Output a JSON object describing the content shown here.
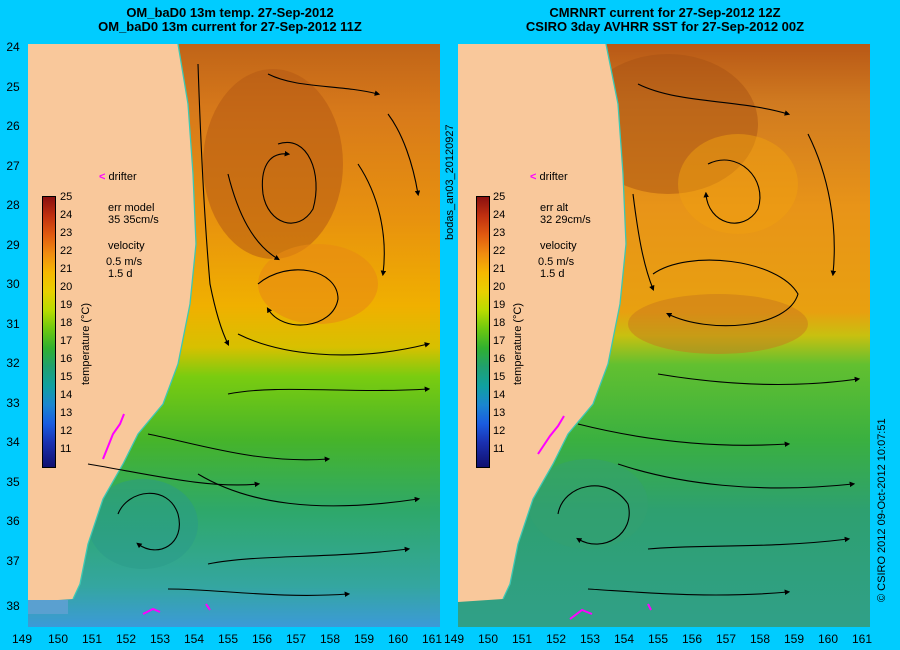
{
  "left_panel": {
    "title_line1": "OM_baD0 13m temp. 27-Sep-2012",
    "title_line2": "OM_baD0 13m current for 27-Sep-2012 11Z",
    "err_label": "err model",
    "err_value": "35 35cm/s",
    "velocity_label": "velocity",
    "velocity_scale": "0.5 m/s",
    "velocity_time": "1.5 d"
  },
  "right_panel": {
    "title_line1": "CMRNRT current for 27-Sep-2012 12Z",
    "title_line2": "CSIRO 3day AVHRR SST for 27-Sep-2012 00Z",
    "err_label": "err alt",
    "err_value": "32 29cm/s",
    "velocity_label": "velocity",
    "velocity_scale": "0.5 m/s",
    "velocity_time": "1.5 d"
  },
  "legend": {
    "drifter_marker": "<",
    "drifter_label": "drifter",
    "colorbar_title": "temperature (°C)",
    "colorbar_ticks": [
      "25",
      "24",
      "23",
      "22",
      "21",
      "20",
      "19",
      "18",
      "17",
      "16",
      "15",
      "14",
      "13",
      "12",
      "11"
    ]
  },
  "axes": {
    "lat_ticks": [
      "24",
      "25",
      "26",
      "27",
      "28",
      "29",
      "30",
      "31",
      "32",
      "33",
      "34",
      "35",
      "36",
      "37",
      "38"
    ],
    "lon_ticks": [
      "149",
      "150",
      "151",
      "152",
      "153",
      "154",
      "155",
      "156",
      "157",
      "158",
      "159",
      "160",
      "161"
    ]
  },
  "side_labels": {
    "middle": "bodas_an03_20120927",
    "right": "© CSIRO 2012   09-Oct-2012 10:07:51"
  },
  "colors": {
    "background": "#00ccff",
    "land": "#f9c89b",
    "coast": "#3cc8b4",
    "drifter": "#ff00ff"
  }
}
